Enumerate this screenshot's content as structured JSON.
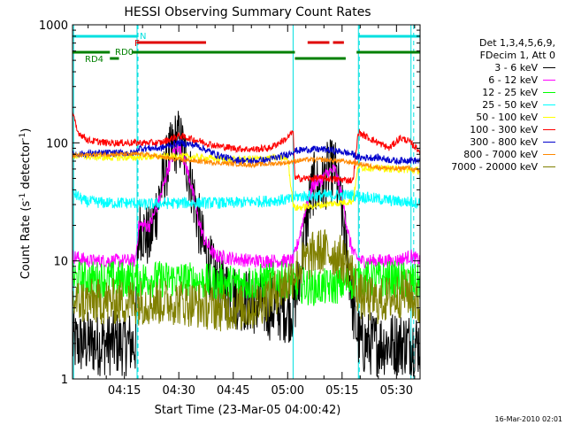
{
  "chart_data": {
    "type": "line",
    "title": "HESSI Observing Summary Count Rates",
    "xlabel": "Start Time (23-Mar-05 04:00:42)",
    "ylabel_main": "Count Rate (s",
    "ylabel_sup1": "-1",
    "ylabel_mid": " detector",
    "ylabel_sup2": "-1",
    "ylabel_end": ")",
    "yscale": "log",
    "ylim": [
      1,
      1000
    ],
    "xlim_minutes": [
      0.7,
      96.5
    ],
    "x_tick_labels": [
      "04:15",
      "04:30",
      "04:45",
      "05:00",
      "05:15",
      "05:30"
    ],
    "x_tick_minutes": [
      15,
      30,
      45,
      60,
      75,
      90
    ],
    "y_tick_labels": [
      "1",
      "10",
      "100",
      "1000"
    ],
    "y_tick_values": [
      1,
      10,
      100,
      1000
    ],
    "legend_header": [
      "Det 1,3,4,5,6,9,",
      "FDecim 1, Att 0"
    ],
    "footer": "16-Mar-2010 02:01",
    "flag_labels": {
      "N": "N",
      "F": "F",
      "RD0": "RD0",
      "RD4": "RD4"
    },
    "flags": [
      {
        "label": "N",
        "color": "#00e0e0",
        "segments": [
          [
            0.7,
            18.5
          ],
          [
            79.5,
            96.5
          ]
        ],
        "level": 0
      },
      {
        "label": "F",
        "color": "#e00000",
        "segments": [
          [
            18.5,
            37.5
          ],
          [
            65.5,
            71.5
          ],
          [
            72.5,
            75.5
          ]
        ],
        "level": 1
      },
      {
        "label": "RD0",
        "color": "#008000",
        "segments": [
          [
            0.7,
            11
          ],
          [
            17,
            62
          ],
          [
            79,
            96.5
          ]
        ],
        "level": 2
      },
      {
        "label": "RD4",
        "color": "#008000",
        "segments": [
          [
            11,
            13.5
          ],
          [
            62,
            76
          ]
        ],
        "level": 3
      }
    ],
    "vlines_solid": [
      {
        "minutes": 1.0,
        "color": "#00e0e0"
      },
      {
        "minutes": 18.5,
        "color": "#00e0e0"
      },
      {
        "minutes": 61.5,
        "color": "#00e0e0"
      },
      {
        "minutes": 79.5,
        "color": "#00e0e0"
      },
      {
        "minutes": 94.0,
        "color": "#00e0e0"
      }
    ],
    "vlines_dashed": [
      {
        "minutes": 18.5,
        "color": "#00e0e0"
      },
      {
        "minutes": 79.5,
        "color": "#00e0e0"
      },
      {
        "minutes": 94.5,
        "color": "#00e0e0"
      }
    ],
    "series": [
      {
        "name": "3 - 6 keV",
        "color": "#000000",
        "noise": 0.28,
        "x": [
          0.7,
          5,
          10,
          15,
          18,
          19,
          22,
          25,
          27,
          29,
          30,
          31,
          33,
          35,
          37,
          40,
          45,
          50,
          55,
          60,
          61.5,
          63,
          65,
          67,
          69,
          71,
          73,
          75,
          77,
          78.5,
          80,
          85,
          90,
          94,
          96.5
        ],
        "y": [
          2,
          2,
          2,
          2,
          2,
          20,
          15,
          40,
          70,
          100,
          105,
          90,
          55,
          25,
          12,
          7,
          5,
          4.5,
          4,
          3.8,
          4,
          6,
          20,
          45,
          40,
          55,
          60,
          25,
          8,
          3,
          2,
          2,
          2,
          2,
          2
        ]
      },
      {
        "name": "6 - 12 keV",
        "color": "#ff00ff",
        "noise": 0.06,
        "x": [
          0.7,
          5,
          10,
          15,
          18,
          19,
          22,
          25,
          27,
          29,
          30,
          31,
          33,
          35,
          37,
          40,
          45,
          50,
          55,
          60,
          61.5,
          63,
          65,
          67,
          69,
          71,
          73,
          75,
          77,
          78.5,
          80,
          85,
          90,
          94,
          96.5
        ],
        "y": [
          11,
          10,
          10,
          10,
          10,
          20,
          20,
          35,
          60,
          90,
          95,
          80,
          50,
          25,
          15,
          11,
          10.5,
          10,
          10,
          10,
          10,
          15,
          28,
          45,
          48,
          55,
          60,
          35,
          15,
          11,
          10,
          10,
          10,
          11,
          10
        ]
      },
      {
        "name": "12 - 25 keV",
        "color": "#00ff00",
        "noise": 0.16,
        "x": [
          0.7,
          10,
          20,
          30,
          40,
          50,
          60,
          62,
          66,
          72,
          76,
          80,
          90,
          96.5
        ],
        "y": [
          7,
          7,
          7,
          7,
          6.5,
          6.5,
          7,
          6.5,
          6,
          6,
          6.5,
          7,
          7,
          6.5
        ]
      },
      {
        "name": "25 - 50 keV",
        "color": "#00ffff",
        "noise": 0.05,
        "x": [
          0.7,
          4,
          10,
          15,
          18,
          19,
          30,
          45,
          60,
          61.5,
          62,
          70,
          78,
          79.5,
          80,
          90,
          96.5
        ],
        "y": [
          38,
          32,
          31,
          31,
          31,
          30,
          31,
          31,
          33,
          33,
          35,
          36,
          36,
          36,
          35,
          32,
          31
        ]
      },
      {
        "name": "50 - 100 keV",
        "color": "#ffff00",
        "noise": 0.03,
        "x": [
          0.7,
          10,
          18,
          19,
          30,
          45,
          60,
          61.5,
          62,
          70,
          78,
          79.5,
          80,
          90,
          96.5
        ],
        "y": [
          78,
          75,
          75,
          76,
          77,
          72,
          75,
          30,
          28,
          30,
          32,
          65,
          62,
          60,
          58
        ]
      },
      {
        "name": "100 - 300 keV",
        "color": "#ff0000",
        "noise": 0.03,
        "x": [
          0.7,
          2,
          5,
          10,
          18,
          19,
          25,
          30,
          35,
          40,
          45,
          50,
          55,
          60,
          61.5,
          62,
          70,
          78,
          79.5,
          80,
          85,
          88,
          91,
          93,
          96.5
        ],
        "y": [
          180,
          125,
          105,
          100,
          100,
          100,
          100,
          115,
          105,
          95,
          90,
          88,
          90,
          110,
          125,
          50,
          50,
          48,
          125,
          120,
          100,
          90,
          110,
          105,
          85
        ]
      },
      {
        "name": "300 - 800 keV",
        "color": "#0000cc",
        "noise": 0.03,
        "x": [
          0.7,
          10,
          18,
          19,
          25,
          30,
          35,
          40,
          45,
          50,
          55,
          60,
          61.5,
          65,
          70,
          75,
          78,
          79.5,
          85,
          90,
          93,
          96.5
        ],
        "y": [
          80,
          82,
          82,
          90,
          90,
          100,
          95,
          80,
          72,
          70,
          72,
          80,
          85,
          88,
          88,
          84,
          80,
          75,
          75,
          70,
          72,
          70
        ]
      },
      {
        "name": "800 - 7000 keV",
        "color": "#ff8800",
        "noise": 0.02,
        "x": [
          0.7,
          10,
          20,
          30,
          40,
          50,
          60,
          61.5,
          65,
          70,
          75,
          78,
          80,
          85,
          90,
          93,
          96.5
        ],
        "y": [
          78,
          80,
          80,
          72,
          68,
          65,
          68,
          70,
          72,
          72,
          70,
          68,
          66,
          62,
          60,
          62,
          57
        ]
      },
      {
        "name": "7000 - 20000 keV",
        "color": "#808000",
        "noise": 0.2,
        "x": [
          0.7,
          10,
          20,
          30,
          40,
          50,
          55,
          60,
          62,
          65,
          68,
          71,
          74,
          77,
          80,
          85,
          90,
          93,
          96.5
        ],
        "y": [
          4.5,
          4.5,
          4.5,
          4.5,
          4,
          4,
          5,
          6.5,
          8,
          10,
          12,
          12,
          11,
          9,
          5,
          4.5,
          5,
          5.5,
          4
        ]
      }
    ]
  }
}
